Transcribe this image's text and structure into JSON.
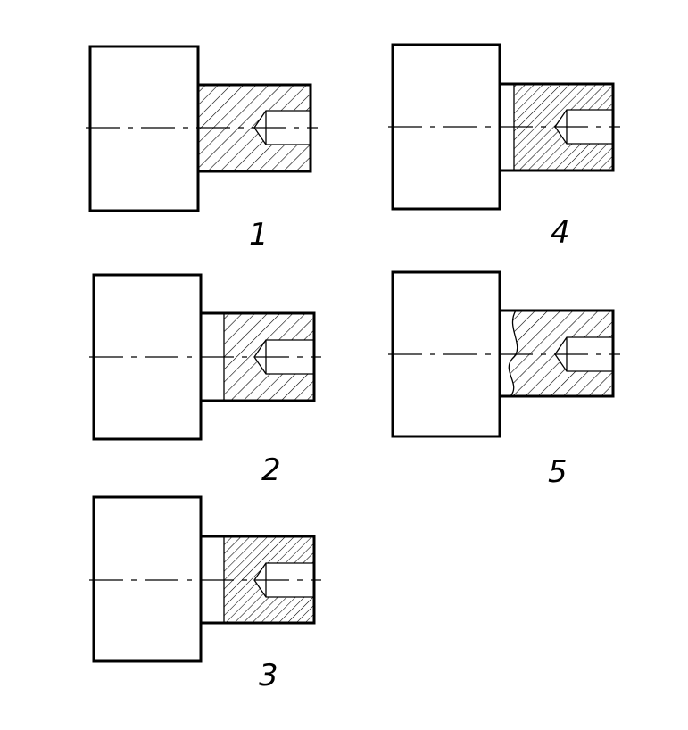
{
  "drawing": {
    "figures": [
      {
        "number": "1",
        "variant": "full-section"
      },
      {
        "number": "2",
        "variant": "half-section-straight-break"
      },
      {
        "number": "3",
        "variant": "half-section-straight-break-dense"
      },
      {
        "number": "4",
        "variant": "section-with-step"
      },
      {
        "number": "5",
        "variant": "section-with-wavy-break"
      }
    ]
  },
  "colors": {
    "line": "#000000",
    "background": "#ffffff"
  }
}
